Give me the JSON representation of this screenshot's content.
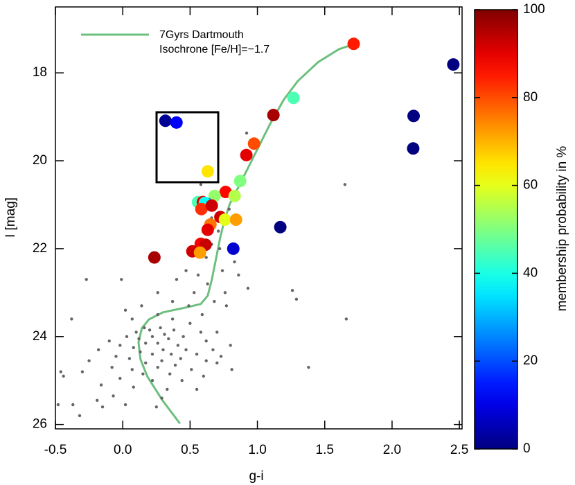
{
  "chart_data": {
    "type": "scatter",
    "xlabel": "g-i",
    "ylabel": "I [mag]",
    "xlim": [
      -0.5,
      2.52
    ],
    "ylim": [
      16.5,
      26.1
    ],
    "y_inverted": true,
    "xticks": [
      -0.5,
      {
        "value": 0,
        "label": "0.0"
      },
      0.5,
      {
        "value": 1,
        "label": "1.0"
      },
      1.5,
      {
        "value": 2,
        "label": "2.0"
      },
      2.5
    ],
    "yticks": [
      18,
      20,
      22,
      24,
      26
    ],
    "colorbar": {
      "label": "membership probability in %",
      "lim": [
        0,
        100
      ],
      "ticks": [
        0,
        20,
        40,
        60,
        80,
        100
      ],
      "colormap": "jet"
    },
    "series": [
      {
        "name": "7Gyrs Dartmouth Isochrone [Fe/H]=−1.7",
        "type": "line",
        "color": "#6dbf7e",
        "x": [
          0.425,
          0.297,
          0.183,
          0.132,
          0.117,
          0.142,
          0.194,
          0.297,
          0.451,
          0.579,
          0.631,
          0.661,
          0.692,
          0.723,
          0.754,
          0.795,
          0.862,
          0.939,
          1.016,
          1.093,
          1.196,
          1.299,
          1.453,
          1.607,
          1.715
        ],
        "y": [
          25.98,
          25.46,
          24.91,
          24.52,
          24.13,
          23.81,
          23.61,
          23.45,
          23.35,
          23.26,
          23.07,
          22.71,
          22.24,
          21.76,
          21.37,
          20.98,
          20.58,
          20.11,
          19.64,
          19.17,
          18.61,
          18.19,
          17.75,
          17.46,
          17.35
        ]
      },
      {
        "type": "scatter",
        "color": "#666666",
        "x": [
          0.92,
          0.58,
          1.65,
          0.76,
          0.66,
          0.79,
          0.71,
          0.66,
          0.52,
          0.72,
          0.62,
          0.83,
          0.47,
          0.74,
          0.56,
          0.86,
          0.4,
          -0.27,
          -0.01,
          0.63,
          0.93,
          0.26,
          0.53,
          0.76,
          1.26,
          1.29,
          0.37,
          0.68,
          0.49,
          0.77,
          0.14,
          0.02,
          0.26,
          0.59,
          1.66,
          -0.38,
          0.07,
          0.37,
          0.5,
          0.16,
          0.2,
          0.28,
          0.38,
          0.1,
          0.31,
          0.58,
          0.7,
          0.03,
          0.12,
          0.22,
          0.34,
          0.45,
          -0.1,
          0.17,
          0.26,
          0.41,
          0.62,
          0.8,
          -0.02,
          0.08,
          0.3,
          0.47,
          0.67,
          -0.18,
          0.13,
          0.22,
          0.36,
          0.55,
          0.73,
          -0.05,
          0.05,
          0.29,
          0.43,
          0.62,
          -0.25,
          0.17,
          0.39,
          0.7,
          0.81,
          -0.08,
          0.07,
          0.26,
          0.51,
          1.38,
          -0.3,
          0.15,
          0.35,
          0.6,
          -0.46,
          -0.44,
          -0.02,
          0.22,
          0.44,
          0.08,
          -0.16,
          0.33,
          0.55,
          -0.07,
          0.29,
          -0.19,
          -0.48,
          -0.37,
          0.02,
          0.25,
          -0.32,
          -0.15
        ],
        "y": [
          19.37,
          20.54,
          20.54,
          20.6,
          21.3,
          21.1,
          21.6,
          21.9,
          22.1,
          22.0,
          22.2,
          22.3,
          22.5,
          22.5,
          22.6,
          22.6,
          22.7,
          22.7,
          22.7,
          22.8,
          22.9,
          23.0,
          23.0,
          23.0,
          22.95,
          23.15,
          23.2,
          23.2,
          23.3,
          23.3,
          23.3,
          23.4,
          23.5,
          23.5,
          23.6,
          23.6,
          23.6,
          23.6,
          23.7,
          23.8,
          23.85,
          23.8,
          23.85,
          23.9,
          23.95,
          23.9,
          23.9,
          24.0,
          24.05,
          24.0,
          24.05,
          24.0,
          24.1,
          24.15,
          24.15,
          24.2,
          24.1,
          24.2,
          24.2,
          24.25,
          24.3,
          24.3,
          24.3,
          24.3,
          24.35,
          24.4,
          24.4,
          24.4,
          24.45,
          24.45,
          24.5,
          24.55,
          24.5,
          24.55,
          24.55,
          24.6,
          24.65,
          24.6,
          24.75,
          24.7,
          24.75,
          24.7,
          24.75,
          24.7,
          24.8,
          24.85,
          24.85,
          24.9,
          24.8,
          24.9,
          24.95,
          25.0,
          25.0,
          25.15,
          25.1,
          25.2,
          25.2,
          25.35,
          25.4,
          25.45,
          25.55,
          25.55,
          25.55,
          25.6,
          25.8,
          25.6
        ]
      },
      {
        "type": "scatter",
        "colormap": "jet",
        "x": [
          1.715,
          2.455,
          1.268,
          1.119,
          2.16,
          0.317,
          0.399,
          0.975,
          2.157,
          0.918,
          0.631,
          0.872,
          0.764,
          0.682,
          0.831,
          0.559,
          0.595,
          0.626,
          0.61,
          0.584,
          0.661,
          0.725,
          0.759,
          0.841,
          0.651,
          0.631,
          1.17,
          0.821,
          0.579,
          0.615,
          0.517,
          0.574,
          0.235
        ],
        "y": [
          17.34,
          17.81,
          18.57,
          18.96,
          18.98,
          19.09,
          19.13,
          19.61,
          19.72,
          19.87,
          20.24,
          20.46,
          20.71,
          20.8,
          20.8,
          20.94,
          20.94,
          20.98,
          20.96,
          21.1,
          21.02,
          21.28,
          21.34,
          21.34,
          21.45,
          21.57,
          21.51,
          22.0,
          21.89,
          21.91,
          22.06,
          22.09,
          22.2
        ],
        "values": [
          85,
          0,
          45,
          96,
          0,
          2,
          12,
          80,
          0,
          90,
          65,
          50,
          87,
          52,
          55,
          45,
          90,
          20,
          38,
          83,
          92,
          92,
          60,
          72,
          76,
          90,
          0,
          8,
          88,
          93,
          92,
          72,
          96
        ]
      }
    ]
  }
}
